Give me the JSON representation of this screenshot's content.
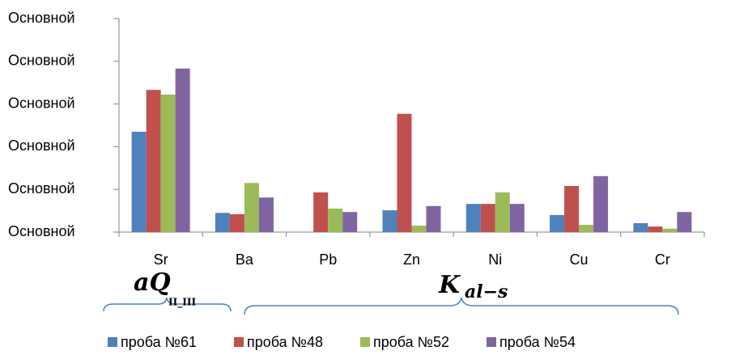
{
  "chart_data": {
    "type": "bar",
    "categories": [
      "Sr",
      "Ba",
      "Pb",
      "Zn",
      "Ni",
      "Cu",
      "Cr"
    ],
    "series": [
      {
        "name": "проба №61",
        "color": "#4f81bd",
        "values": [
          2.35,
          0.45,
          0,
          0.51,
          0.66,
          0.4,
          0.21
        ]
      },
      {
        "name": "проба №48",
        "color": "#c0504d",
        "values": [
          3.33,
          0.42,
          0.93,
          2.77,
          0.66,
          1.08,
          0.13
        ]
      },
      {
        "name": "проба №52",
        "color": "#9bbb59",
        "values": [
          3.22,
          1.15,
          0.55,
          0.15,
          0.93,
          0.17,
          0.08
        ]
      },
      {
        "name": "проба №54",
        "color": "#8064a2",
        "values": [
          3.83,
          0.81,
          0.47,
          0.61,
          0.66,
          1.31,
          0.47
        ]
      }
    ],
    "ylim": [
      0,
      5
    ],
    "yticks": [
      {
        "value": 0,
        "label": "Основной"
      },
      {
        "value": 1,
        "label": "Основной"
      },
      {
        "value": 2,
        "label": "Основной"
      },
      {
        "value": 3,
        "label": "Основной"
      },
      {
        "value": 4,
        "label": "Основной"
      },
      {
        "value": 5,
        "label": "Основной"
      }
    ],
    "grid": false,
    "legend": "bottom",
    "annotations": [
      {
        "text": "aQ",
        "subscript": "II_III"
      },
      {
        "text": "K",
        "subscript": "al−s"
      }
    ]
  }
}
